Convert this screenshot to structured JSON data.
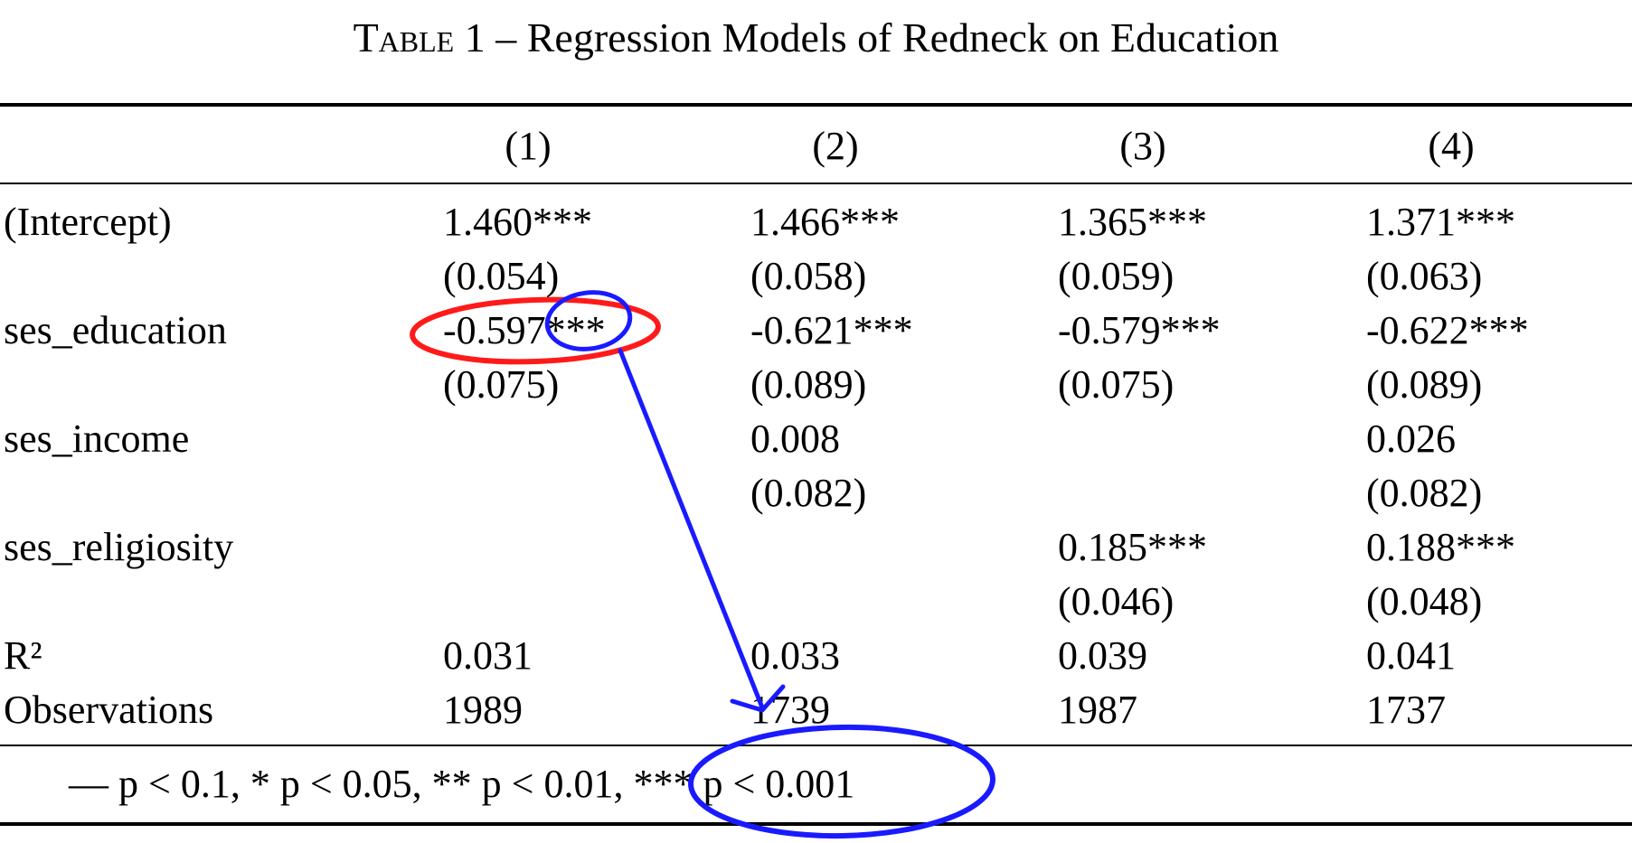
{
  "caption": {
    "label": "Table 1",
    "dash": "–",
    "title": "Regression Models of Redneck on Education"
  },
  "columns": [
    "(1)",
    "(2)",
    "(3)",
    "(4)"
  ],
  "rows": [
    {
      "name": "(Intercept)",
      "coef": [
        "1.460***",
        "1.466***",
        "1.365***",
        "1.371***"
      ],
      "se": [
        "(0.054)",
        "(0.058)",
        "(0.059)",
        "(0.063)"
      ]
    },
    {
      "name": "ses_education",
      "coef": [
        "-0.597***",
        "-0.621***",
        "-0.579***",
        "-0.622***"
      ],
      "se": [
        "(0.075)",
        "(0.089)",
        "(0.075)",
        "(0.089)"
      ]
    },
    {
      "name": "ses_income",
      "coef": [
        "",
        "0.008",
        "",
        "0.026"
      ],
      "se": [
        "",
        "(0.082)",
        "",
        "(0.082)"
      ]
    },
    {
      "name": "ses_religiosity",
      "coef": [
        "",
        "",
        "0.185***",
        "0.188***"
      ],
      "se": [
        "",
        "",
        "(0.046)",
        "(0.048)"
      ]
    }
  ],
  "stats": [
    {
      "name": "R²",
      "values": [
        "0.031",
        "0.033",
        "0.039",
        "0.041"
      ]
    },
    {
      "name": "Observations",
      "values": [
        "1989",
        "1739",
        "1987",
        "1737"
      ]
    }
  ],
  "footnote": "— p < 0.1, * p < 0.05, ** p < 0.01, *** p < 0.001",
  "annotations": {
    "coef_circle_color": "#ff1a1a",
    "stars_circle_color": "#1a1aff",
    "arrow_color": "#1a1aff",
    "footnote_circle_color": "#1a1aff"
  }
}
